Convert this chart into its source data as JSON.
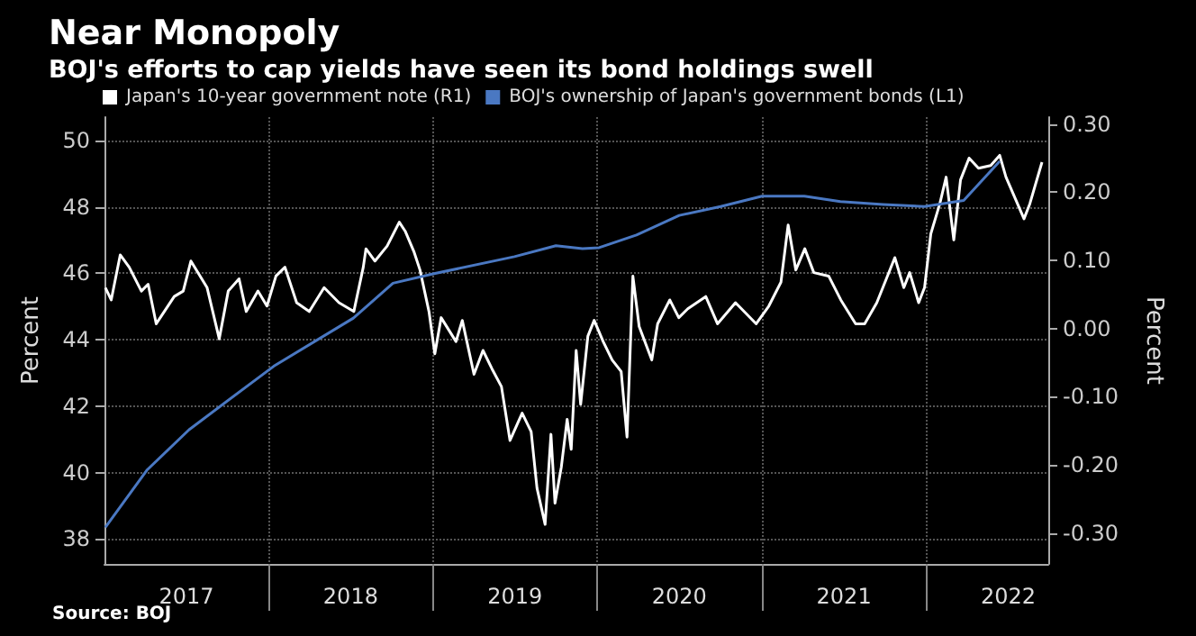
{
  "chart_data": {
    "type": "line",
    "title": "Near Monopoly",
    "subtitle": "BOJ's efforts to cap yields have seen its bond holdings swell",
    "ylabel": "Percent",
    "y2label": "Percent",
    "annotations": [
      "Source: BOJ"
    ],
    "xlim": [
      "2017-01-01",
      "2022-09-29"
    ],
    "xticks": [
      {
        "value": "2018-01-01",
        "label": null
      },
      {
        "value": "2019-01-01",
        "label": null
      },
      {
        "value": "2020-01-01",
        "label": null
      },
      {
        "value": "2021-01-01",
        "label": null
      },
      {
        "value": "2022-01-01",
        "label": null
      },
      {
        "value": "2017-07-02",
        "label": "2017"
      },
      {
        "value": "2018-07-02",
        "label": "2018"
      },
      {
        "value": "2019-07-02",
        "label": "2019"
      },
      {
        "value": "2020-07-01",
        "label": "2020"
      },
      {
        "value": "2021-07-02",
        "label": "2021"
      },
      {
        "value": "2022-07-02",
        "label": "2022"
      }
    ],
    "ylim": [
      37.25,
      50.7
    ],
    "yticks": [
      38,
      40,
      42,
      44,
      46,
      48,
      50
    ],
    "y2lim": [
      -0.345,
      0.31
    ],
    "y2ticks": [
      {
        "value": -0.3,
        "label": "-0.30"
      },
      {
        "value": -0.2,
        "label": "-0.20"
      },
      {
        "value": -0.1,
        "label": "-0.10"
      },
      {
        "value": 0,
        "label": "0.00"
      },
      {
        "value": 0.1,
        "label": "0.10"
      },
      {
        "value": 0.2,
        "label": "0.20"
      },
      {
        "value": 0.3,
        "label": "0.30"
      }
    ],
    "grid": true,
    "legend": "top left",
    "marker": "none",
    "line_style": "solid",
    "series": [
      {
        "name": "Japan's 10-year government note (R1)",
        "color": "#ffffff",
        "axis": "y2",
        "x": [
          "2017-01-03",
          "2017-01-16",
          "2017-02-05",
          "2017-02-25",
          "2017-03-24",
          "2017-04-08",
          "2017-04-26",
          "2017-06-05",
          "2017-06-25",
          "2017-07-12",
          "2017-08-17",
          "2017-09-13",
          "2017-10-03",
          "2017-10-27",
          "2017-11-12",
          "2017-12-08",
          "2017-12-28",
          "2018-01-17",
          "2018-02-06",
          "2018-03-04",
          "2018-04-01",
          "2018-05-04",
          "2018-06-06",
          "2018-07-09",
          "2018-07-30",
          "2018-08-05",
          "2018-08-25",
          "2018-09-21",
          "2018-10-18",
          "2018-10-31",
          "2018-11-20",
          "2018-12-03",
          "2018-12-23",
          "2019-01-05",
          "2019-01-19",
          "2019-02-21",
          "2019-03-07",
          "2019-04-02",
          "2019-04-22",
          "2019-05-12",
          "2019-06-02",
          "2019-06-21",
          "2019-07-18",
          "2019-08-07",
          "2019-08-20",
          "2019-09-07",
          "2019-09-20",
          "2019-09-29",
          "2019-10-13",
          "2019-10-26",
          "2019-11-04",
          "2019-11-15",
          "2019-11-25",
          "2019-12-11",
          "2019-12-25",
          "2020-01-14",
          "2020-02-03",
          "2020-02-23",
          "2020-03-07",
          "2020-03-20",
          "2020-04-03",
          "2020-05-01",
          "2020-05-14",
          "2020-06-10",
          "2020-06-30",
          "2020-07-20",
          "2020-08-29",
          "2020-09-24",
          "2020-11-03",
          "2020-12-19",
          "2021-01-16",
          "2021-02-12",
          "2021-02-28",
          "2021-03-17",
          "2021-04-06",
          "2021-04-26",
          "2021-05-29",
          "2021-06-25",
          "2021-07-28",
          "2021-08-17",
          "2021-09-13",
          "2021-10-23",
          "2021-11-12",
          "2021-11-25",
          "2021-12-15",
          "2021-12-28",
          "2022-01-11",
          "2022-01-31",
          "2022-02-14",
          "2022-03-03",
          "2022-03-18",
          "2022-04-06",
          "2022-04-27",
          "2022-05-24",
          "2022-06-13",
          "2022-06-27",
          "2022-08-06",
          "2022-08-19",
          "2022-09-15"
        ],
        "values": [
          0.06,
          0.042,
          0.108,
          0.09,
          0.055,
          0.065,
          0.007,
          0.047,
          0.055,
          0.099,
          0.06,
          -0.015,
          0.055,
          0.073,
          0.025,
          0.055,
          0.033,
          0.077,
          0.09,
          0.038,
          0.025,
          0.06,
          0.038,
          0.025,
          0.09,
          0.117,
          0.099,
          0.121,
          0.156,
          0.143,
          0.112,
          0.086,
          0.025,
          -0.037,
          0.016,
          -0.019,
          0.012,
          -0.067,
          -0.032,
          -0.059,
          -0.085,
          -0.164,
          -0.124,
          -0.151,
          -0.234,
          -0.287,
          -0.155,
          -0.256,
          -0.203,
          -0.133,
          -0.177,
          -0.032,
          -0.111,
          -0.011,
          0.012,
          -0.019,
          -0.046,
          -0.063,
          -0.159,
          0.077,
          0.003,
          -0.046,
          0.007,
          0.042,
          0.016,
          0.029,
          0.047,
          0.007,
          0.038,
          0.007,
          0.033,
          0.068,
          0.152,
          0.086,
          0.117,
          0.082,
          0.077,
          0.042,
          0.007,
          0.007,
          0.038,
          0.104,
          0.06,
          0.082,
          0.038,
          0.06,
          0.139,
          0.183,
          0.222,
          0.13,
          0.218,
          0.25,
          0.235,
          0.239,
          0.254,
          0.222,
          0.161,
          0.183,
          0.244
        ]
      },
      {
        "name": "BOJ's ownership of Japan's government bonds (L1)",
        "color": "#4a78c2",
        "x": [
          "2017-01-03",
          "2017-04-05",
          "2017-07-08",
          "2018-01-12",
          "2018-07-08",
          "2018-10-04",
          "2019-01-01",
          "2019-07-01",
          "2019-10-01",
          "2019-11-29",
          "2020-01-05",
          "2020-03-28",
          "2020-07-01",
          "2020-10-01",
          "2021-01-01",
          "2021-04-05",
          "2021-06-24",
          "2021-09-27",
          "2021-12-28",
          "2022-03-25",
          "2022-06-13"
        ],
        "values": [
          38.35,
          40.07,
          41.29,
          43.2,
          44.65,
          45.7,
          45.98,
          46.5,
          46.83,
          46.74,
          46.77,
          47.15,
          47.74,
          48.01,
          48.32,
          48.32,
          48.16,
          48.07,
          48.01,
          48.19,
          49.37
        ]
      }
    ]
  }
}
